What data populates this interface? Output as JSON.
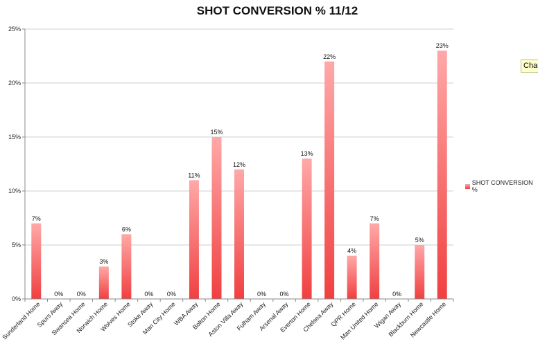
{
  "chart_data": {
    "type": "bar",
    "title": "SHOT CONVERSION % 11/12",
    "xlabel": "",
    "ylabel": "",
    "ylim": [
      0,
      25
    ],
    "yticks": [
      "0%",
      "5%",
      "10%",
      "15%",
      "20%",
      "25%"
    ],
    "grid": true,
    "legend_position": "right",
    "categories": [
      "Sunderland Home",
      "Spurs Away",
      "Swansea Home",
      "Norwich Home",
      "Wolves Home",
      "Stoke Away",
      "Man City Home",
      "WBA Away",
      "Bolton Home",
      "Aston Villa Away",
      "Fulham Away",
      "Arsenal Away",
      "Everton Home",
      "Chelsea Away",
      "QPR Home",
      "Man United Home",
      "Wigan Away",
      "Blackburn Home",
      "Newcastle Home"
    ],
    "series": [
      {
        "name": "SHOT CONVERSION %",
        "values": [
          7,
          0,
          0,
          3,
          6,
          0,
          0,
          11,
          15,
          12,
          0,
          0,
          13,
          22,
          4,
          7,
          0,
          5,
          23
        ],
        "data_labels": [
          "7%",
          "0%",
          "0%",
          "3%",
          "6%",
          "0%",
          "0%",
          "11%",
          "15%",
          "12%",
          "0%",
          "0%",
          "13%",
          "22%",
          "4%",
          "7%",
          "0%",
          "5%",
          "23%"
        ]
      }
    ],
    "colors": {
      "bar_top": "#ffa8a8",
      "bar_bottom": "#f04040",
      "grid": "#cfcfcf",
      "axis": "#888888"
    }
  },
  "legend": {
    "label": "SHOT CONVERSION %"
  },
  "tooltip": {
    "text": "Char"
  }
}
